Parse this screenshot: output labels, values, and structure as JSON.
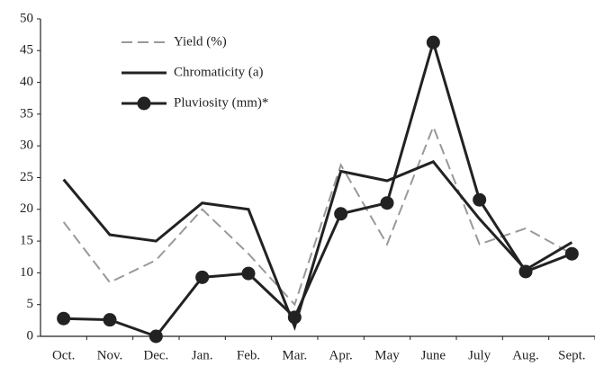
{
  "chart_data": {
    "type": "line",
    "categories": [
      "Oct.",
      "Nov.",
      "Dec.",
      "Jan.",
      "Feb.",
      "Mar.",
      "Apr.",
      "May",
      "June",
      "July",
      "Aug.",
      "Sept."
    ],
    "series": [
      {
        "name": "Yield (%)",
        "color": "#999999",
        "dashed": true,
        "marker": "none",
        "values": [
          18,
          8.5,
          12,
          20,
          13,
          5,
          27,
          14.5,
          33,
          14.5,
          17,
          13
        ]
      },
      {
        "name": "Chromaticity (a)",
        "color": "#222222",
        "dashed": false,
        "marker": "none",
        "values": [
          24.7,
          16,
          15,
          21,
          20,
          1.5,
          26,
          24.5,
          27.5,
          18.5,
          10.5,
          14.8
        ]
      },
      {
        "name": "Pluviosity (mm)*",
        "color": "#222222",
        "dashed": false,
        "marker": "circle",
        "values": [
          2.8,
          2.6,
          0,
          9.3,
          9.9,
          3,
          19.3,
          21,
          46.3,
          21.5,
          10.2,
          13
        ]
      }
    ],
    "ylim": [
      0,
      50
    ],
    "yticks": [
      0,
      5,
      10,
      15,
      20,
      25,
      30,
      35,
      40,
      45,
      50
    ],
    "grid": false,
    "legend": "upper left"
  }
}
